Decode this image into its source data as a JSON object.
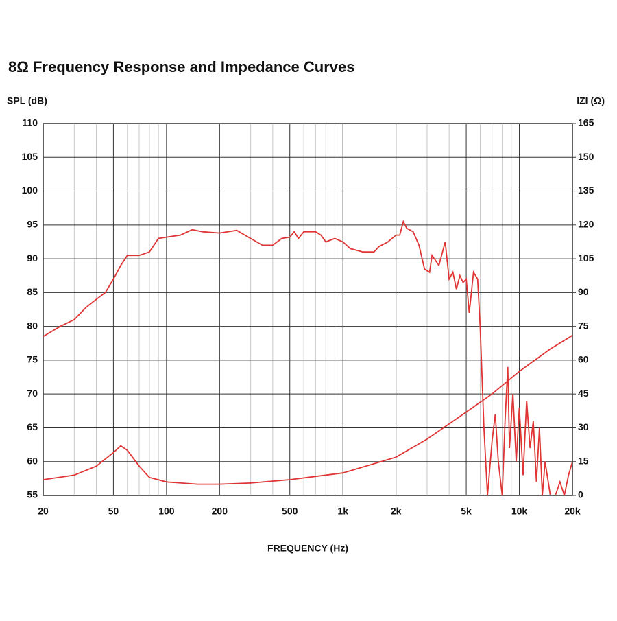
{
  "chart_data": {
    "type": "line",
    "title": "8Ω Frequency Response and Impedance Curves",
    "ylabel": "SPL (dB)",
    "y2label": "IZI (Ω)",
    "xlabel": "FREQUENCY (Hz)",
    "xscale": "log",
    "grid": true,
    "xlim": [
      20,
      20000
    ],
    "xticks": [
      20,
      50,
      100,
      200,
      500,
      {
        "value": 1000,
        "label": "1k"
      },
      {
        "value": 2000,
        "label": "2k"
      },
      {
        "value": 5000,
        "label": "5k"
      },
      {
        "value": 10000,
        "label": "10k"
      },
      {
        "value": 20000,
        "label": "20k"
      }
    ],
    "xgrid_minor": [
      30,
      40,
      60,
      70,
      80,
      90,
      300,
      400,
      600,
      700,
      800,
      900,
      3000,
      4000,
      6000,
      7000,
      8000,
      9000
    ],
    "ylim": [
      55,
      110
    ],
    "yticks": [
      55,
      60,
      65,
      70,
      75,
      80,
      85,
      90,
      95,
      100,
      105,
      110
    ],
    "y2lim": [
      0,
      165
    ],
    "y2ticks": [
      0,
      15,
      30,
      45,
      60,
      75,
      90,
      105,
      120,
      135,
      150,
      165
    ],
    "series": [
      {
        "color": "#e03535",
        "axis": "y",
        "x": [
          20,
          25,
          30,
          35,
          40,
          45,
          50,
          55,
          60,
          70,
          80,
          90,
          100,
          120,
          140,
          160,
          200,
          250,
          300,
          350,
          400,
          450,
          500,
          530,
          560,
          600,
          700,
          750,
          800,
          900,
          1000,
          1100,
          1300,
          1500,
          1600,
          1800,
          2000,
          2100,
          2200,
          2300,
          2500,
          2700,
          2900,
          3100,
          3200,
          3500,
          3800,
          4000,
          4200,
          4400,
          4600,
          4800,
          5000,
          5200,
          5500,
          5800,
          6000,
          6300,
          6600,
          7000,
          7300,
          7600,
          8000,
          8300,
          8600,
          8800,
          9200,
          9600,
          10000,
          10500,
          11000,
          11500,
          12000,
          12500,
          13000,
          13500,
          14000,
          15000,
          16000,
          17000,
          18000,
          19000,
          20000
        ],
        "values": [
          78.5,
          80,
          81,
          82.8,
          84,
          85,
          87,
          89,
          90.5,
          90.5,
          91,
          93,
          93.2,
          93.5,
          94.3,
          94,
          93.8,
          94.2,
          93,
          92,
          92,
          93,
          93.2,
          94,
          93,
          94,
          94,
          93.5,
          92.5,
          93,
          92.5,
          91.5,
          91,
          91,
          91.8,
          92.5,
          93.5,
          93.5,
          95.5,
          94.5,
          94,
          92,
          88.5,
          88,
          90.5,
          89,
          92.5,
          87,
          88,
          85.5,
          87.5,
          86.5,
          87,
          82,
          88,
          87,
          80,
          65,
          55,
          63,
          67,
          60,
          55,
          66,
          74,
          62,
          70,
          60,
          68,
          58,
          69,
          62,
          66,
          57,
          65,
          55,
          60,
          55,
          55,
          57,
          55,
          58,
          60
        ]
      },
      {
        "color": "#e03535",
        "axis": "y2",
        "x": [
          20,
          30,
          40,
          50,
          55,
          60,
          70,
          80,
          100,
          150,
          200,
          300,
          500,
          1000,
          2000,
          3000,
          5000,
          7000,
          10000,
          15000,
          20000
        ],
        "values": [
          7,
          9,
          13,
          19,
          22,
          20,
          13,
          8,
          6,
          5,
          5,
          5.5,
          7,
          10,
          17,
          25,
          37,
          45,
          55,
          65,
          71
        ]
      }
    ]
  }
}
